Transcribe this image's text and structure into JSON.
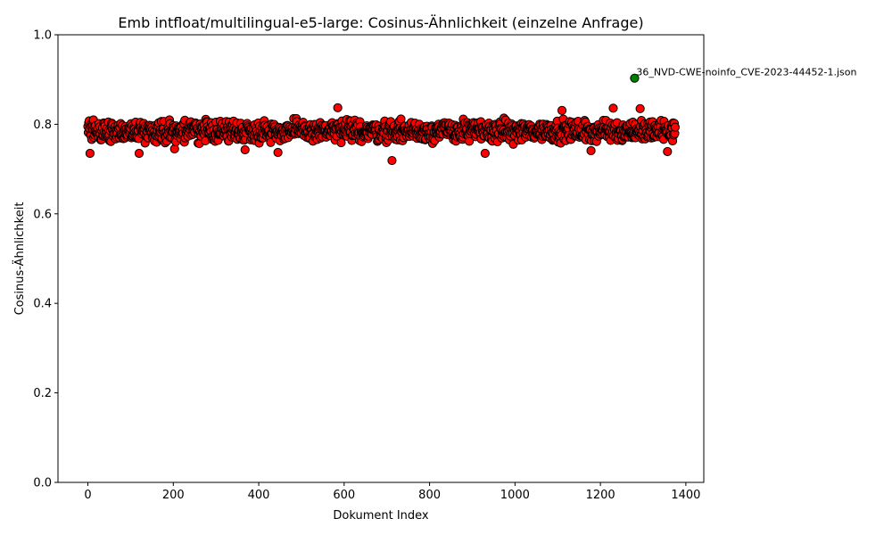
{
  "chart_data": {
    "type": "scatter",
    "title": "Emb intfloat/multilingual-e5-large: Cosinus-Ähnlichkeit (einzelne Anfrage)",
    "xlabel": "Dokument Index",
    "ylabel": "Cosinus-Ähnlichkeit",
    "xlim": [
      -70,
      1442
    ],
    "ylim": [
      0.0,
      1.0
    ],
    "x_ticks": [
      "0",
      "200",
      "400",
      "600",
      "800",
      "1000",
      "1200",
      "1400"
    ],
    "y_ticks": [
      "0.0",
      "0.2",
      "0.4",
      "0.6",
      "0.8",
      "1.0"
    ],
    "grid": false,
    "colors": {
      "points": "#ff0000",
      "highlight": "#008000",
      "edge": "#000000"
    },
    "series": [
      {
        "role": "documents",
        "count": 1376,
        "typical_range": [
          0.74,
          0.83
        ],
        "notable_points": [
          {
            "x": 5,
            "y": 0.735
          },
          {
            "x": 120,
            "y": 0.735
          },
          {
            "x": 203,
            "y": 0.745
          },
          {
            "x": 368,
            "y": 0.743
          },
          {
            "x": 445,
            "y": 0.737
          },
          {
            "x": 712,
            "y": 0.719
          },
          {
            "x": 930,
            "y": 0.735
          },
          {
            "x": 1178,
            "y": 0.741
          },
          {
            "x": 1357,
            "y": 0.739
          },
          {
            "x": 585,
            "y": 0.837
          },
          {
            "x": 1230,
            "y": 0.836
          },
          {
            "x": 1293,
            "y": 0.835
          },
          {
            "x": 1110,
            "y": 0.831
          }
        ]
      },
      {
        "role": "best match",
        "points": [
          {
            "x": 1280,
            "y": 0.903,
            "label": "36_NVD-CWE-noinfo_CVE-2023-44452-1.json"
          }
        ]
      }
    ]
  }
}
